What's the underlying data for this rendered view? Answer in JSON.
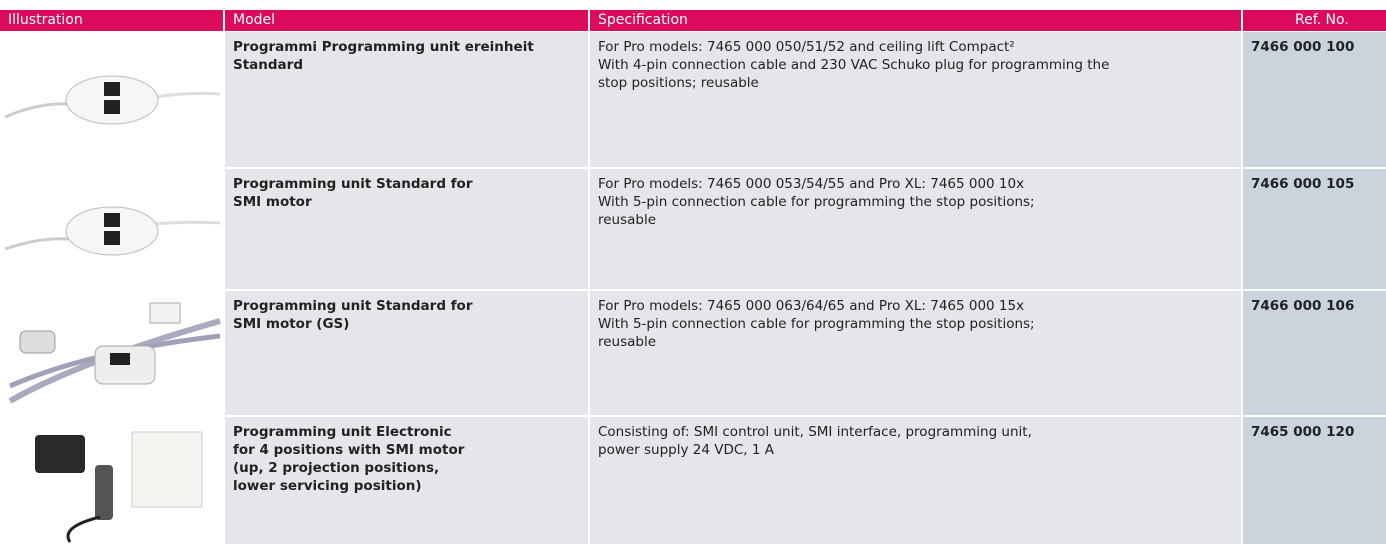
{
  "table": {
    "header": [
      "Illustration",
      "Model",
      "Specification",
      "Ref. No."
    ],
    "rows": [
      {
        "model": [
          "Programmi Programming unit ereinheit",
          "Standard"
        ],
        "specification": [
          "For Pro models: 7465 000 050/51/52 and ceiling lift Compact²",
          "With 4-pin connection cable and 230 VAC Schuko plug for programming the",
          "stop positions; reusable"
        ],
        "ref_no": "7466 000 100"
      },
      {
        "model": [
          "Programming unit Standard for",
          "SMI motor"
        ],
        "specification": [
          "For Pro models: 7465 000 053/54/55 and Pro XL: 7465 000 10x",
          "With 5-pin connection cable for programming the stop positions;",
          "reusable"
        ],
        "ref_no": "7466 000 105"
      },
      {
        "model": [
          "Programming unit Standard for",
          "SMI motor (GS)"
        ],
        "specification": [
          "For Pro models: 7465 000 063/64/65 and Pro XL: 7465 000 15x",
          "With 5-pin connection cable for programming the stop positions;",
          "reusable"
        ],
        "ref_no": "7466 000 106"
      },
      {
        "model": [
          "Programming unit Electronic",
          "for 4 positions with SMI motor",
          "(up, 2 projection positions,",
          "lower servicing position)"
        ],
        "specification": [
          "Consisting of: SMI control unit, SMI interface, programming unit,",
          "power supply 24 VDC, 1 A"
        ],
        "ref_no": "7465 000 120"
      }
    ]
  }
}
